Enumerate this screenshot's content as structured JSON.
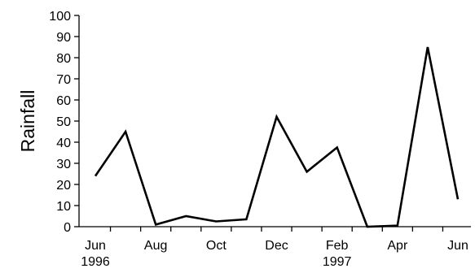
{
  "chart_data": {
    "type": "line",
    "title": "",
    "ylabel": "Rainfall",
    "xlabel": "",
    "ylim": [
      0,
      100
    ],
    "yticks": [
      0,
      10,
      20,
      30,
      40,
      50,
      60,
      70,
      80,
      90,
      100
    ],
    "x": [
      "Jun 1996",
      "Jul 1996",
      "Aug 1996",
      "Sep 1996",
      "Oct 1996",
      "Nov 1996",
      "Dec 1996",
      "Jan 1997",
      "Feb 1997",
      "Mar 1997",
      "Apr 1997",
      "May 1997",
      "Jun 1997"
    ],
    "xtick_labels": [
      {
        "x": "Jun 1996",
        "lines": [
          "Jun",
          "1996"
        ]
      },
      {
        "x": "Aug 1996",
        "lines": [
          "Aug"
        ]
      },
      {
        "x": "Oct 1996",
        "lines": [
          "Oct"
        ]
      },
      {
        "x": "Dec 1996",
        "lines": [
          "Dec"
        ]
      },
      {
        "x": "Feb 1997",
        "lines": [
          "Feb",
          "1997"
        ]
      },
      {
        "x": "Apr 1997",
        "lines": [
          "Apr"
        ]
      },
      {
        "x": "Jun 1997",
        "lines": [
          "Jun"
        ]
      }
    ],
    "series": [
      {
        "values": [
          24,
          45,
          1,
          5,
          2.5,
          3.5,
          52,
          26,
          37.5,
          0,
          0.5,
          85,
          13
        ],
        "color": "#000000"
      }
    ],
    "grid": false,
    "legend": "none"
  }
}
